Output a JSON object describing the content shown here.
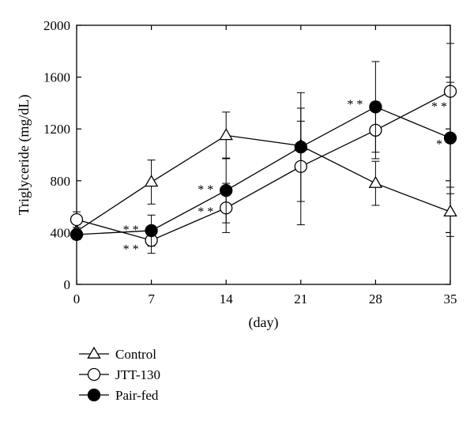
{
  "chart_data": {
    "type": "line",
    "xlabel": "(day)",
    "ylabel": "Triglyceride (mg/dL)",
    "x": [
      0,
      7,
      14,
      21,
      28,
      35
    ],
    "xlim": [
      0,
      35
    ],
    "ylim": [
      0,
      2000
    ],
    "yticks": [
      0,
      400,
      800,
      1200,
      1600,
      2000
    ],
    "xticks": [
      0,
      7,
      14,
      21,
      28,
      35
    ],
    "grid": false,
    "legend_position": "bottom-left",
    "series": [
      {
        "name": "Control",
        "marker": "open-triangle",
        "values": [
          410,
          790,
          1150,
          1070,
          780,
          560
        ],
        "error": [
          60,
          170,
          180,
          190,
          170,
          190
        ]
      },
      {
        "name": "JTT-130",
        "marker": "open-circle",
        "values": [
          500,
          340,
          590,
          910,
          1190,
          1490
        ],
        "error": [
          60,
          100,
          190,
          450,
          220,
          370
        ]
      },
      {
        "name": "Pair-fed",
        "marker": "filled-circle",
        "values": [
          385,
          415,
          725,
          1060,
          1370,
          1130
        ],
        "error": [
          40,
          120,
          250,
          420,
          350,
          430
        ]
      }
    ],
    "annotations": [
      {
        "x": 7,
        "value": 440,
        "text": "* *"
      },
      {
        "x": 7,
        "value": 290,
        "text": "* *"
      },
      {
        "x": 14,
        "value": 750,
        "text": "* *"
      },
      {
        "x": 14,
        "value": 580,
        "text": "* *"
      },
      {
        "x": 28,
        "value": 1410,
        "text": "* *"
      },
      {
        "x": 35,
        "value": 1390,
        "text": "* *"
      },
      {
        "x": 35,
        "value": 1100,
        "text": "*"
      }
    ]
  }
}
